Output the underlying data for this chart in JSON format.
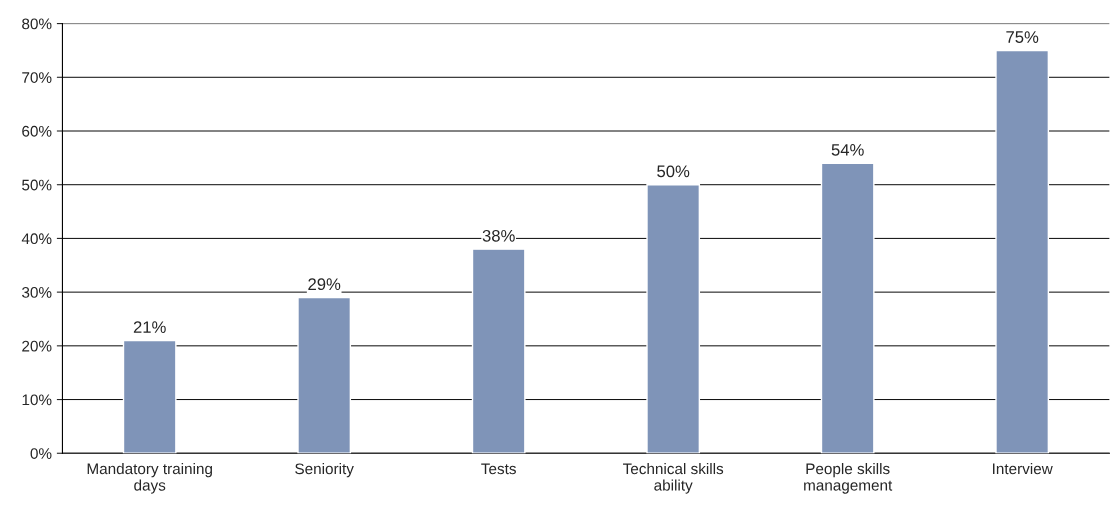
{
  "chart_data": {
    "type": "bar",
    "categories": [
      "Mandatory training\ndays",
      "Seniority",
      "Tests",
      "Technical skills\nability",
      "People skills\nmanagement",
      "Interview"
    ],
    "values": [
      21,
      29,
      38,
      50,
      54,
      75
    ],
    "value_labels": [
      "21%",
      "29%",
      "38%",
      "50%",
      "54%",
      "75%"
    ],
    "color": "#7f94b8",
    "ylim": [
      0,
      80
    ],
    "yticks": [
      {
        "value": 0,
        "label": "0%"
      },
      {
        "value": 10,
        "label": "10%"
      },
      {
        "value": 20,
        "label": "20%"
      },
      {
        "value": 30,
        "label": "30%"
      },
      {
        "value": 40,
        "label": "40%"
      },
      {
        "value": 50,
        "label": "50%"
      },
      {
        "value": 60,
        "label": "60%"
      },
      {
        "value": 70,
        "label": "70%"
      },
      {
        "value": 80,
        "label": "80%"
      }
    ],
    "grid": "y"
  }
}
